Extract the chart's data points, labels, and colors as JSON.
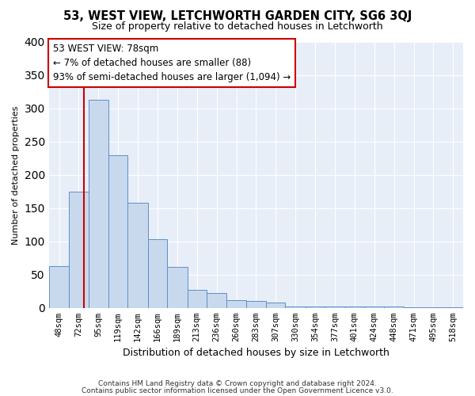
{
  "title": "53, WEST VIEW, LETCHWORTH GARDEN CITY, SG6 3QJ",
  "subtitle": "Size of property relative to detached houses in Letchworth",
  "xlabel": "Distribution of detached houses by size in Letchworth",
  "ylabel": "Number of detached properties",
  "bin_labels": [
    "48sqm",
    "72sqm",
    "95sqm",
    "119sqm",
    "142sqm",
    "166sqm",
    "189sqm",
    "213sqm",
    "236sqm",
    "260sqm",
    "283sqm",
    "307sqm",
    "330sqm",
    "354sqm",
    "377sqm",
    "401sqm",
    "424sqm",
    "448sqm",
    "471sqm",
    "495sqm",
    "518sqm"
  ],
  "bin_edges": [
    36,
    60,
    83,
    107,
    130,
    154,
    177,
    201,
    224,
    248,
    271,
    295,
    318,
    342,
    365,
    389,
    412,
    436,
    459,
    483,
    506,
    530
  ],
  "bar_values": [
    63,
    175,
    313,
    230,
    158,
    103,
    62,
    27,
    22,
    12,
    10,
    8,
    2,
    2,
    2,
    2,
    2,
    2,
    1,
    1,
    1
  ],
  "bar_facecolor": "#c9d9ed",
  "bar_edgecolor": "#5b8fc9",
  "property_size": 78,
  "vline_color": "#cc0000",
  "annotation_line1": "53 WEST VIEW: 78sqm",
  "annotation_line2": "← 7% of detached houses are smaller (88)",
  "annotation_line3": "93% of semi-detached houses are larger (1,094) →",
  "annotation_box_edgecolor": "#cc0000",
  "ylim": [
    0,
    400
  ],
  "yticks": [
    0,
    50,
    100,
    150,
    200,
    250,
    300,
    350,
    400
  ],
  "fig_background_color": "#ffffff",
  "plot_background": "#e8eef8",
  "grid_color": "#ffffff",
  "footer_line1": "Contains HM Land Registry data © Crown copyright and database right 2024.",
  "footer_line2": "Contains public sector information licensed under the Open Government Licence v3.0."
}
